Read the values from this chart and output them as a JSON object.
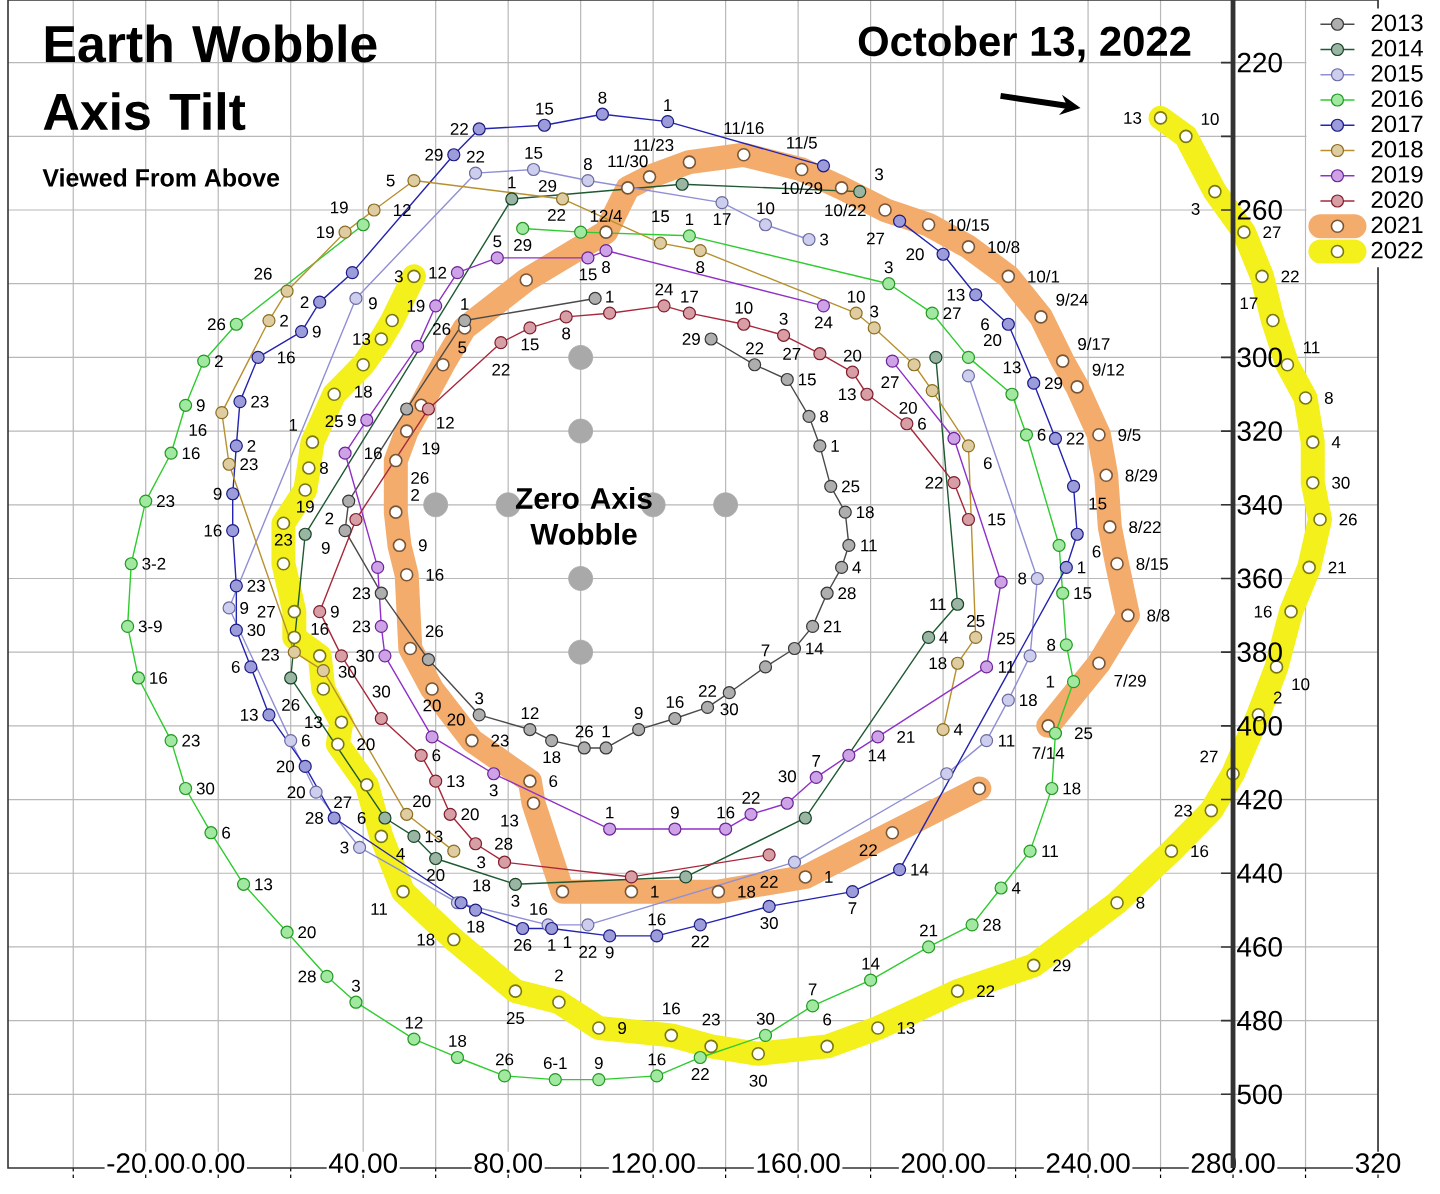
{
  "chart_data": {
    "type": "line",
    "title": "Earth Wobble Axis Tilt",
    "subtitle": "Viewed From Above",
    "xlim": [
      -58,
      320
    ],
    "ylim": [
      520,
      203
    ],
    "xticks": [
      {
        "value": -40,
        "label": null
      },
      {
        "value": -20,
        "label": "-20.00"
      },
      {
        "value": 0,
        "label": "0.00"
      },
      {
        "value": 20,
        "label": null
      },
      {
        "value": 40,
        "label": "40.00"
      },
      {
        "value": 60,
        "label": null
      },
      {
        "value": 80,
        "label": "80.00"
      },
      {
        "value": 100,
        "label": null
      },
      {
        "value": 120,
        "label": "120.00"
      },
      {
        "value": 140,
        "label": null
      },
      {
        "value": 160,
        "label": "160.00"
      },
      {
        "value": 180,
        "label": null
      },
      {
        "value": 200,
        "label": "200.00"
      },
      {
        "value": 220,
        "label": null
      },
      {
        "value": 240,
        "label": "240.00"
      },
      {
        "value": 260,
        "label": null
      },
      {
        "value": 280,
        "label": "280.00"
      },
      {
        "value": 300,
        "label": null
      },
      320
    ],
    "yticks": [
      220,
      {
        "value": 240,
        "label": null
      },
      260,
      {
        "value": 280,
        "label": null
      },
      300,
      320,
      340,
      360,
      380,
      400,
      420,
      440,
      460,
      480,
      500
    ],
    "grid": true,
    "legend": "top right",
    "marker": "circle",
    "series": [
      {
        "name": "2013",
        "color": "#4a4a4a",
        "x": [
          104,
          68,
          52,
          36,
          35,
          45,
          58,
          72,
          86,
          92,
          101,
          107,
          116,
          126,
          135,
          141,
          151,
          159,
          164,
          168,
          172,
          174,
          173,
          169,
          166,
          163,
          157,
          148,
          136
        ],
        "values": [
          284,
          290,
          314,
          339,
          347,
          364,
          382,
          397,
          401,
          404,
          406,
          406,
          401,
          398,
          395,
          391,
          384,
          379,
          373,
          364,
          357,
          351,
          342,
          335,
          324,
          316,
          306,
          302,
          295
        ]
      },
      {
        "name": "2014",
        "color": "#1e5a32",
        "x": [
          177,
          128,
          81,
          24,
          20,
          46,
          54,
          60,
          82,
          129,
          162,
          196,
          204,
          198
        ],
        "values": [
          255,
          253,
          257,
          348,
          387,
          425,
          430,
          436,
          443,
          441,
          425,
          376,
          367,
          300
        ]
      },
      {
        "name": "2015",
        "color": "#8f8fd6",
        "x": [
          163,
          151,
          139,
          102,
          87,
          71,
          38,
          3,
          20,
          27,
          39,
          66,
          91,
          102,
          159,
          201,
          212,
          218,
          224,
          226,
          207
        ],
        "values": [
          268,
          264,
          258,
          252,
          249,
          250,
          284,
          368,
          404,
          418,
          433,
          448,
          454,
          454,
          437,
          413,
          404,
          393,
          381,
          360,
          305
        ]
      },
      {
        "name": "2016",
        "color": "#2ecc2e",
        "x": [
          40,
          5,
          -4,
          -9,
          -13,
          -20,
          -24,
          -25,
          -22,
          -13,
          -9,
          -2,
          7,
          19,
          30,
          38,
          54,
          66,
          79,
          93,
          105,
          121,
          133,
          151,
          164,
          180,
          196,
          208,
          216,
          224,
          230,
          231,
          236,
          234,
          233,
          232,
          223,
          219,
          207,
          197,
          185,
          130,
          100,
          84
        ],
        "values": [
          264,
          291,
          301,
          313,
          326,
          339,
          356,
          373,
          387,
          404,
          417,
          429,
          443,
          456,
          468,
          475,
          485,
          490,
          495,
          496,
          496,
          495,
          490,
          484,
          476,
          469,
          460,
          454,
          444,
          434,
          417,
          402,
          388,
          378,
          364,
          351,
          321,
          310,
          300,
          288,
          280,
          267,
          266,
          265
        ]
      },
      {
        "name": "2017",
        "color": "#2424b0",
        "x": [
          167,
          124,
          106,
          90,
          72,
          65,
          37,
          28,
          23,
          11,
          6,
          5,
          4,
          4,
          5,
          5,
          9,
          14,
          24,
          32,
          67,
          71,
          84,
          92,
          108,
          121,
          133,
          152,
          175,
          188,
          234,
          237,
          236,
          231,
          225,
          218,
          209,
          200,
          188
        ],
        "values": [
          248,
          236,
          234,
          237,
          238,
          245,
          277,
          285,
          293,
          300,
          312,
          324,
          337,
          347,
          362,
          374,
          384,
          397,
          411,
          425,
          448,
          450,
          455,
          455,
          457,
          457,
          454,
          449,
          445,
          439,
          357,
          348,
          335,
          322,
          307,
          291,
          283,
          272,
          263
        ]
      },
      {
        "name": "2018",
        "color": "#b8912e",
        "x": [
          200,
          204,
          209,
          207,
          197,
          192,
          181,
          176,
          133,
          122,
          95,
          54,
          43,
          35,
          19,
          14,
          1,
          3,
          21,
          29,
          52,
          65
        ],
        "values": [
          401,
          383,
          376,
          324,
          309,
          302,
          292,
          288,
          271,
          269,
          257,
          252,
          260,
          266,
          282,
          290,
          315,
          329,
          380,
          385,
          424,
          434
        ]
      },
      {
        "name": "2019",
        "color": "#9030c8",
        "x": [
          167,
          107,
          102,
          77,
          66,
          60,
          55,
          41,
          35,
          44,
          45,
          46,
          59,
          76,
          108,
          126,
          140,
          147,
          157,
          165,
          174,
          182,
          212,
          216,
          203,
          186
        ],
        "values": [
          286,
          271,
          273,
          273,
          277,
          286,
          297,
          317,
          326,
          357,
          373,
          381,
          403,
          413,
          428,
          428,
          428,
          424,
          421,
          414,
          408,
          403,
          384,
          361,
          322,
          301
        ]
      },
      {
        "name": "2020",
        "color": "#a8283a",
        "x": [
          207,
          203,
          190,
          179,
          175,
          166,
          156,
          145,
          130,
          123,
          108,
          96,
          86,
          78,
          58,
          38,
          28,
          34,
          45,
          56,
          60,
          64,
          71,
          79,
          114,
          152
        ],
        "values": [
          344,
          334,
          318,
          310,
          304,
          299,
          294,
          291,
          288,
          286,
          288,
          289,
          292,
          296,
          314,
          344,
          369,
          381,
          398,
          408,
          415,
          424,
          432,
          437,
          441,
          435
        ]
      },
      {
        "name": "2021",
        "color": "#f3ac6c",
        "x": [
          229,
          243,
          251,
          248,
          246,
          245,
          243,
          237,
          233,
          227,
          218,
          207,
          196,
          184,
          172,
          161,
          145,
          130,
          119,
          113,
          107,
          85,
          68,
          62,
          56,
          52,
          49,
          49,
          50,
          52,
          53,
          59,
          70,
          86,
          87,
          95,
          114,
          138,
          162,
          186,
          210
        ],
        "values": [
          400,
          383,
          370,
          356,
          346,
          332,
          321,
          308,
          301,
          289,
          278,
          270,
          264,
          260,
          254,
          249,
          245,
          247,
          251,
          254,
          266,
          279,
          292,
          302,
          313,
          320,
          328,
          342,
          351,
          359,
          379,
          390,
          404,
          415,
          421,
          445,
          445,
          445,
          441,
          429,
          417
        ]
      },
      {
        "name": "2022",
        "color": "#f4f01c",
        "x": [
          54,
          48,
          45,
          40,
          32,
          26,
          25,
          24,
          18,
          18,
          21,
          21,
          28,
          29,
          34,
          33,
          41,
          45,
          51,
          65,
          82,
          94,
          105,
          125,
          136,
          149,
          168,
          182,
          204,
          225,
          248,
          263,
          274,
          280,
          287,
          292,
          296,
          301,
          304,
          302,
          302,
          300,
          295,
          291,
          288,
          283,
          275,
          267,
          260
        ],
        "values": [
          278,
          290,
          295,
          302,
          310,
          323,
          330,
          336,
          345,
          356,
          369,
          376,
          381,
          390,
          399,
          405,
          416,
          430,
          445,
          458,
          472,
          475,
          482,
          484,
          487,
          489,
          487,
          482,
          472,
          465,
          448,
          434,
          423,
          413,
          397,
          384,
          369,
          357,
          344,
          334,
          323,
          311,
          302,
          290,
          278,
          266,
          255,
          240,
          235
        ]
      },
      {
        "type": "scatter",
        "color": "#a9a9a9",
        "x": [
          60,
          80,
          120,
          140,
          100,
          100,
          100,
          100
        ],
        "values": [
          340,
          340,
          340,
          340,
          300,
          320,
          360,
          380
        ]
      }
    ],
    "annotations": [
      {
        "text": "October 13, 2022",
        "x": 260,
        "y": 235
      },
      "Zero Axis Wobble",
      {
        "text": "1",
        "x": 68,
        "y": 290
      },
      {
        "text": "2",
        "x": 36,
        "y": 339
      },
      {
        "text": "9",
        "x": 35,
        "y": 347
      },
      {
        "text": "23",
        "x": 45,
        "y": 364
      },
      {
        "text": "3",
        "x": 72,
        "y": 397
      },
      {
        "text": "12",
        "x": 86,
        "y": 401
      },
      {
        "text": "18",
        "x": 92,
        "y": 404
      },
      {
        "text": "26",
        "x": 101,
        "y": 406
      },
      {
        "text": "1",
        "x": 107,
        "y": 406
      },
      {
        "text": "9",
        "x": 116,
        "y": 401
      },
      {
        "text": "16",
        "x": 126,
        "y": 398
      },
      {
        "text": "22",
        "x": 135,
        "y": 395
      },
      {
        "text": "30",
        "x": 141,
        "y": 391
      },
      {
        "text": "7",
        "x": 151,
        "y": 384
      },
      {
        "text": "14",
        "x": 159,
        "y": 379
      },
      {
        "text": "21",
        "x": 164,
        "y": 373
      },
      {
        "text": "28",
        "x": 168,
        "y": 364
      },
      {
        "text": "4",
        "x": 172,
        "y": 357
      },
      {
        "text": "11",
        "x": 174,
        "y": 351
      },
      {
        "text": "18",
        "x": 173,
        "y": 342
      },
      {
        "text": "25",
        "x": 169,
        "y": 335
      },
      {
        "text": "1",
        "x": 166,
        "y": 324
      },
      {
        "text": "8",
        "x": 163,
        "y": 316
      },
      {
        "text": "15",
        "x": 157,
        "y": 306
      },
      {
        "text": "22",
        "x": 148,
        "y": 302
      },
      {
        "text": "29",
        "x": 136,
        "y": 295
      },
      {
        "text": "3",
        "x": 177,
        "y": 255
      },
      {
        "text": "1",
        "x": 81,
        "y": 257
      },
      {
        "text": "26",
        "x": 20,
        "y": 387
      },
      {
        "text": "6",
        "x": 46,
        "y": 425
      },
      {
        "text": "13",
        "x": 54,
        "y": 430
      },
      {
        "text": "20",
        "x": 60,
        "y": 436
      },
      {
        "text": "3",
        "x": 82,
        "y": 443
      },
      {
        "text": "4",
        "x": 196,
        "y": 376
      },
      {
        "text": "11",
        "x": 204,
        "y": 367
      },
      {
        "text": "3",
        "x": 163,
        "y": 268
      },
      {
        "text": "10",
        "x": 151,
        "y": 264
      },
      {
        "text": "17",
        "x": 139,
        "y": 258
      },
      {
        "text": "8",
        "x": 102,
        "y": 252
      },
      {
        "text": "15",
        "x": 87,
        "y": 249
      },
      {
        "text": "22",
        "x": 71,
        "y": 250
      },
      {
        "text": "9",
        "x": 3,
        "y": 368
      },
      {
        "text": "6",
        "x": 20,
        "y": 404
      },
      {
        "text": "20",
        "x": 27,
        "y": 418
      },
      {
        "text": "3",
        "x": 39,
        "y": 433
      },
      {
        "text": "18",
        "x": 66,
        "y": 448
      },
      {
        "text": "1",
        "x": 91,
        "y": 454
      },
      {
        "text": "22",
        "x": 102,
        "y": 454
      },
      {
        "text": "11",
        "x": 212,
        "y": 404
      },
      {
        "text": "18",
        "x": 218,
        "y": 393
      },
      {
        "text": "25",
        "x": 224,
        "y": 381
      },
      {
        "text": "8",
        "x": 226,
        "y": 360
      },
      {
        "text": "19",
        "x": 40,
        "y": 264
      },
      {
        "text": "26",
        "x": 5,
        "y": 291
      },
      {
        "text": "2",
        "x": -4,
        "y": 301
      },
      {
        "text": "9",
        "x": -9,
        "y": 313
      },
      {
        "text": "16",
        "x": -13,
        "y": 326
      },
      {
        "text": "23",
        "x": -20,
        "y": 339
      },
      {
        "text": "3-2",
        "x": -24,
        "y": 356
      },
      {
        "text": "3-9",
        "x": -25,
        "y": 373
      },
      {
        "text": "16",
        "x": -22,
        "y": 387
      },
      {
        "text": "23",
        "x": -13,
        "y": 404
      },
      {
        "text": "30",
        "x": -9,
        "y": 417
      },
      {
        "text": "6",
        "x": -2,
        "y": 429
      },
      {
        "text": "13",
        "x": 7,
        "y": 443
      },
      {
        "text": "20",
        "x": 19,
        "y": 456
      },
      {
        "text": "28",
        "x": 30,
        "y": 468
      },
      {
        "text": "3",
        "x": 38,
        "y": 475
      },
      {
        "text": "12",
        "x": 54,
        "y": 485
      },
      {
        "text": "18",
        "x": 66,
        "y": 490
      },
      {
        "text": "26",
        "x": 79,
        "y": 495
      },
      {
        "text": "6-1",
        "x": 93,
        "y": 496
      },
      {
        "text": "9",
        "x": 105,
        "y": 496
      },
      {
        "text": "16",
        "x": 121,
        "y": 495
      },
      {
        "text": "22",
        "x": 133,
        "y": 490
      },
      {
        "text": "30",
        "x": 151,
        "y": 484
      },
      {
        "text": "7",
        "x": 164,
        "y": 476
      },
      {
        "text": "14",
        "x": 180,
        "y": 469
      },
      {
        "text": "21",
        "x": 196,
        "y": 460
      },
      {
        "text": "28",
        "x": 208,
        "y": 454
      },
      {
        "text": "4",
        "x": 216,
        "y": 444
      },
      {
        "text": "11",
        "x": 224,
        "y": 434
      },
      {
        "text": "18",
        "x": 230,
        "y": 417
      },
      {
        "text": "25",
        "x": 231,
        "y": 402
      },
      {
        "text": "1",
        "x": 236,
        "y": 388
      },
      {
        "text": "8",
        "x": 234,
        "y": 378
      },
      {
        "text": "15",
        "x": 233,
        "y": 364
      },
      {
        "text": "6",
        "x": 223,
        "y": 321
      },
      {
        "text": "13",
        "x": 219,
        "y": 310
      },
      {
        "text": "20",
        "x": 207,
        "y": 300
      },
      {
        "text": "27",
        "x": 197,
        "y": 288
      },
      {
        "text": "3",
        "x": 185,
        "y": 280
      },
      {
        "text": "1",
        "x": 130,
        "y": 267
      },
      {
        "text": "22",
        "x": 100,
        "y": 266
      },
      {
        "text": "29",
        "x": 84,
        "y": 265
      },
      {
        "text": "1",
        "x": 124,
        "y": 236
      },
      {
        "text": "8",
        "x": 106,
        "y": 234
      },
      {
        "text": "15",
        "x": 90,
        "y": 237
      },
      {
        "text": "22",
        "x": 72,
        "y": 238
      },
      {
        "text": "29",
        "x": 65,
        "y": 245
      },
      {
        "text": "2",
        "x": 28,
        "y": 285
      },
      {
        "text": "9",
        "x": 23,
        "y": 293
      },
      {
        "text": "16",
        "x": 11,
        "y": 300
      },
      {
        "text": "23",
        "x": 6,
        "y": 312
      },
      {
        "text": "2",
        "x": 5,
        "y": 324
      },
      {
        "text": "9",
        "x": 4,
        "y": 337
      },
      {
        "text": "16",
        "x": 4,
        "y": 347
      },
      {
        "text": "23",
        "x": 5,
        "y": 362
      },
      {
        "text": "30",
        "x": 5,
        "y": 374
      },
      {
        "text": "6",
        "x": 9,
        "y": 384
      },
      {
        "text": "13",
        "x": 14,
        "y": 397
      },
      {
        "text": "20",
        "x": 24,
        "y": 411
      },
      {
        "text": "28",
        "x": 32,
        "y": 425
      },
      {
        "text": "18",
        "x": 71,
        "y": 450
      },
      {
        "text": "26",
        "x": 84,
        "y": 455
      },
      {
        "text": "1",
        "x": 92,
        "y": 455
      },
      {
        "text": "9",
        "x": 108,
        "y": 457
      },
      {
        "text": "16",
        "x": 121,
        "y": 457
      },
      {
        "text": "22",
        "x": 133,
        "y": 454
      },
      {
        "text": "30",
        "x": 152,
        "y": 449
      },
      {
        "text": "7",
        "x": 175,
        "y": 445
      },
      {
        "text": "14",
        "x": 188,
        "y": 439
      },
      {
        "text": "1",
        "x": 234,
        "y": 357
      },
      {
        "text": "6",
        "x": 237,
        "y": 348
      },
      {
        "text": "15",
        "x": 236,
        "y": 335
      },
      {
        "text": "22",
        "x": 231,
        "y": 322
      },
      {
        "text": "29",
        "x": 225,
        "y": 307
      },
      {
        "text": "6",
        "x": 218,
        "y": 291
      },
      {
        "text": "13",
        "x": 209,
        "y": 283
      },
      {
        "text": "20",
        "x": 200,
        "y": 272
      },
      {
        "text": "27",
        "x": 188,
        "y": 263
      },
      {
        "text": "4",
        "x": 200,
        "y": 401
      },
      {
        "text": "18",
        "x": 204,
        "y": 383
      },
      {
        "text": "25",
        "x": 209,
        "y": 376
      },
      {
        "text": "6",
        "x": 207,
        "y": 324
      },
      {
        "text": "20",
        "x": 197,
        "y": 309
      },
      {
        "text": "27",
        "x": 192,
        "y": 302
      },
      {
        "text": "3",
        "x": 181,
        "y": 292
      },
      {
        "text": "10",
        "x": 176,
        "y": 288
      },
      {
        "text": "8",
        "x": 133,
        "y": 271
      },
      {
        "text": "15",
        "x": 122,
        "y": 269
      },
      {
        "text": "29",
        "x": 95,
        "y": 257
      },
      {
        "text": "5",
        "x": 54,
        "y": 252
      },
      {
        "text": "12",
        "x": 43,
        "y": 260
      },
      {
        "text": "19",
        "x": 35,
        "y": 266
      },
      {
        "text": "26",
        "x": 19,
        "y": 282
      },
      {
        "text": "2",
        "x": 14,
        "y": 290
      },
      {
        "text": "16",
        "x": 1,
        "y": 315
      },
      {
        "text": "23",
        "x": 3,
        "y": 329
      },
      {
        "text": "20",
        "x": 52,
        "y": 424
      },
      {
        "text": "24",
        "x": 167,
        "y": 286
      },
      {
        "text": "8",
        "x": 107,
        "y": 271
      },
      {
        "text": "15",
        "x": 102,
        "y": 273
      },
      {
        "text": "5",
        "x": 77,
        "y": 273
      },
      {
        "text": "12",
        "x": 66,
        "y": 277
      },
      {
        "text": "19",
        "x": 60,
        "y": 286
      },
      {
        "text": "26",
        "x": 55,
        "y": 297
      },
      {
        "text": "9",
        "x": 41,
        "y": 317
      },
      {
        "text": "16",
        "x": 35,
        "y": 326
      },
      {
        "text": "23",
        "x": 45,
        "y": 373
      },
      {
        "text": "30",
        "x": 46,
        "y": 381
      },
      {
        "text": "20",
        "x": 59,
        "y": 403
      },
      {
        "text": "3",
        "x": 76,
        "y": 413
      },
      {
        "text": "1",
        "x": 108,
        "y": 428
      },
      {
        "text": "9",
        "x": 126,
        "y": 428
      },
      {
        "text": "16",
        "x": 140,
        "y": 428
      },
      {
        "text": "22",
        "x": 147,
        "y": 424
      },
      {
        "text": "30",
        "x": 157,
        "y": 421
      },
      {
        "text": "7",
        "x": 165,
        "y": 414
      },
      {
        "text": "14",
        "x": 174,
        "y": 408
      },
      {
        "text": "21",
        "x": 182,
        "y": 403
      },
      {
        "text": "11",
        "x": 212,
        "y": 384
      },
      {
        "text": "15",
        "x": 207,
        "y": 344
      },
      {
        "text": "22",
        "x": 203,
        "y": 334
      },
      {
        "text": "6",
        "x": 190,
        "y": 318
      },
      {
        "text": "13",
        "x": 179,
        "y": 310
      },
      {
        "text": "20",
        "x": 175,
        "y": 304
      },
      {
        "text": "27",
        "x": 166,
        "y": 299
      },
      {
        "text": "3",
        "x": 156,
        "y": 294
      },
      {
        "text": "10",
        "x": 145,
        "y": 291
      },
      {
        "text": "17",
        "x": 130,
        "y": 288
      },
      {
        "text": "24",
        "x": 123,
        "y": 286
      },
      {
        "text": "1",
        "x": 108,
        "y": 288
      },
      {
        "text": "8",
        "x": 96,
        "y": 289
      },
      {
        "text": "15",
        "x": 86,
        "y": 292
      },
      {
        "text": "22",
        "x": 78,
        "y": 296
      },
      {
        "text": "9",
        "x": 28,
        "y": 369
      },
      {
        "text": "30",
        "x": 45,
        "y": 398
      },
      {
        "text": "6",
        "x": 56,
        "y": 408
      },
      {
        "text": "13",
        "x": 60,
        "y": 415
      },
      {
        "text": "20",
        "x": 64,
        "y": 424
      },
      {
        "text": "28",
        "x": 71,
        "y": 432
      },
      {
        "text": "3",
        "x": 79,
        "y": 437
      },
      {
        "text": "22",
        "x": 152,
        "y": 435
      },
      {
        "text": "7/14",
        "x": 229,
        "y": 400
      },
      {
        "text": "7/29",
        "x": 243,
        "y": 383
      },
      {
        "text": "8/8",
        "x": 251,
        "y": 370
      },
      {
        "text": "8/15",
        "x": 248,
        "y": 356
      },
      {
        "text": "8/22",
        "x": 246,
        "y": 346
      },
      {
        "text": "8/29",
        "x": 245,
        "y": 332
      },
      {
        "text": "9/5",
        "x": 243,
        "y": 321
      },
      {
        "text": "9/12",
        "x": 237,
        "y": 308
      },
      {
        "text": "9/17",
        "x": 233,
        "y": 301
      },
      {
        "text": "9/24",
        "x": 227,
        "y": 289
      },
      {
        "text": "10/1",
        "x": 218,
        "y": 278
      },
      {
        "text": "10/8",
        "x": 207,
        "y": 270
      },
      {
        "text": "10/15",
        "x": 196,
        "y": 264
      },
      {
        "text": "10/22",
        "x": 184,
        "y": 260
      },
      {
        "text": "10/29",
        "x": 172,
        "y": 254
      },
      {
        "text": "11/5",
        "x": 161,
        "y": 249
      },
      {
        "text": "11/16",
        "x": 145,
        "y": 245
      },
      {
        "text": "11/23",
        "x": 130,
        "y": 247
      },
      {
        "text": "11/30",
        "x": 113,
        "y": 254
      },
      {
        "text": "12/4",
        "x": 107,
        "y": 266
      },
      {
        "text": "5",
        "x": 62,
        "y": 302
      },
      {
        "text": "12",
        "x": 56,
        "y": 313
      },
      {
        "text": "19",
        "x": 52,
        "y": 320
      },
      {
        "text": "26",
        "x": 49,
        "y": 328
      },
      {
        "text": "2",
        "x": 49,
        "y": 342
      },
      {
        "text": "9",
        "x": 50,
        "y": 351
      },
      {
        "text": "16",
        "x": 52,
        "y": 359
      },
      {
        "text": "26",
        "x": 53,
        "y": 379
      },
      {
        "text": "20",
        "x": 59,
        "y": 390
      },
      {
        "text": "23",
        "x": 70,
        "y": 404
      },
      {
        "text": "6",
        "x": 86,
        "y": 415
      },
      {
        "text": "13",
        "x": 87,
        "y": 421
      },
      {
        "text": "16",
        "x": 95,
        "y": 445
      },
      {
        "text": "1",
        "x": 114,
        "y": 445
      },
      {
        "text": "18",
        "x": 138,
        "y": 445
      },
      {
        "text": "1",
        "x": 162,
        "y": 441
      },
      {
        "text": "22",
        "x": 186,
        "y": 429
      },
      {
        "text": "3",
        "x": 54,
        "y": 278
      },
      {
        "text": "9",
        "x": 48,
        "y": 290
      },
      {
        "text": "13",
        "x": 45,
        "y": 295
      },
      {
        "text": "18",
        "x": 40,
        "y": 302
      },
      {
        "text": "25",
        "x": 32,
        "y": 310
      },
      {
        "text": "1",
        "x": 26,
        "y": 323
      },
      {
        "text": "8",
        "x": 25,
        "y": 330
      },
      {
        "text": "19",
        "x": 24,
        "y": 336
      },
      {
        "text": "23",
        "x": 18,
        "y": 345
      },
      {
        "text": "27",
        "x": 21,
        "y": 369
      },
      {
        "text": "23",
        "x": 21,
        "y": 376
      },
      {
        "text": "16",
        "x": 28,
        "y": 381
      },
      {
        "text": "30",
        "x": 29,
        "y": 390
      },
      {
        "text": "13",
        "x": 34,
        "y": 399
      },
      {
        "text": "20",
        "x": 33,
        "y": 405
      },
      {
        "text": "27",
        "x": 41,
        "y": 416
      },
      {
        "text": "4",
        "x": 45,
        "y": 430
      },
      {
        "text": "11",
        "x": 51,
        "y": 445
      },
      {
        "text": "18",
        "x": 65,
        "y": 458
      },
      {
        "text": "25",
        "x": 82,
        "y": 472
      },
      {
        "text": "2",
        "x": 94,
        "y": 475
      },
      {
        "text": "9",
        "x": 105,
        "y": 482
      },
      {
        "text": "16",
        "x": 125,
        "y": 484
      },
      {
        "text": "23",
        "x": 136,
        "y": 487
      },
      {
        "text": "30",
        "x": 149,
        "y": 489
      },
      {
        "text": "6",
        "x": 168,
        "y": 487
      },
      {
        "text": "13",
        "x": 182,
        "y": 482
      },
      {
        "text": "22",
        "x": 204,
        "y": 472
      },
      {
        "text": "29",
        "x": 225,
        "y": 465
      },
      {
        "text": "8",
        "x": 248,
        "y": 448
      },
      {
        "text": "16",
        "x": 263,
        "y": 434
      },
      {
        "text": "23",
        "x": 274,
        "y": 423
      },
      {
        "text": "27",
        "x": 280,
        "y": 413
      },
      {
        "text": "2",
        "x": 287,
        "y": 397
      },
      {
        "text": "10",
        "x": 292,
        "y": 384
      },
      {
        "text": "16",
        "x": 296,
        "y": 369
      },
      {
        "text": "21",
        "x": 301,
        "y": 357
      },
      {
        "text": "26",
        "x": 304,
        "y": 344
      },
      {
        "text": "30",
        "x": 302,
        "y": 334
      },
      {
        "text": "4",
        "x": 302,
        "y": 323
      },
      {
        "text": "8",
        "x": 300,
        "y": 311
      },
      {
        "text": "11",
        "x": 295,
        "y": 302
      },
      {
        "text": "17",
        "x": 291,
        "y": 290
      },
      {
        "text": "22",
        "x": 288,
        "y": 278
      },
      {
        "text": "27",
        "x": 283,
        "y": 266
      },
      {
        "text": "3",
        "x": 275,
        "y": 255
      },
      {
        "text": "10",
        "x": 267,
        "y": 240
      },
      {
        "text": "13",
        "x": 260,
        "y": 235
      }
    ]
  }
}
